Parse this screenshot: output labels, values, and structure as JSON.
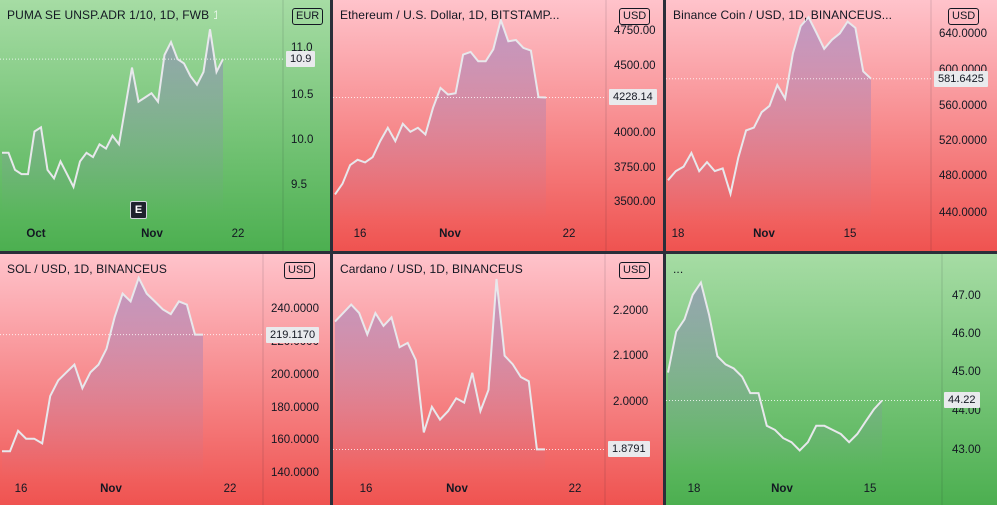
{
  "colors": {
    "green_top": "#a6dca4",
    "green_bottom": "#4caf50",
    "red_top": "#ffc3cb",
    "red_bottom": "#ef5350",
    "line": "#e8e8ec",
    "fill": "#8e7bbf",
    "frame": "#131722",
    "divider": "#2a2e39"
  },
  "chart_data": [
    {
      "type": "line",
      "title": "PUMA SE UNSP.ADR 1/10, 1D, FWB",
      "title_value": "10.9",
      "currency": "EUR",
      "theme": "green",
      "last_price": "10.9",
      "price_ticks": [
        "11.0",
        "10.5",
        "10.0",
        "9.5"
      ],
      "ylim": [
        9.0,
        11.5
      ],
      "x_ticks": [
        "Oct",
        "Nov",
        "22"
      ],
      "event_marker": "E",
      "values": [
        9.8,
        9.8,
        9.6,
        9.55,
        9.55,
        10.05,
        10.1,
        9.6,
        9.5,
        9.7,
        9.55,
        9.4,
        9.7,
        9.8,
        9.75,
        9.9,
        9.85,
        10.0,
        9.9,
        10.35,
        10.8,
        10.4,
        10.45,
        10.5,
        10.4,
        10.95,
        11.1,
        10.9,
        10.85,
        10.7,
        10.6,
        10.75,
        11.25,
        10.75,
        10.9
      ]
    },
    {
      "type": "line",
      "title": "Ethereum / U.S. Dollar, 1D, BITSTAMP...",
      "currency": "USD",
      "theme": "red",
      "last_price": "4228.14",
      "price_ticks": [
        "4750.00",
        "4500.00",
        "4250.00",
        "4000.00",
        "3750.00",
        "3500.00"
      ],
      "ylim": [
        3300,
        4900
      ],
      "x_ticks": [
        "16",
        "Nov",
        "22"
      ],
      "values": [
        3500,
        3580,
        3720,
        3760,
        3740,
        3780,
        3900,
        4000,
        3900,
        4030,
        3970,
        4000,
        3950,
        4150,
        4300,
        4250,
        4260,
        4550,
        4570,
        4500,
        4500,
        4590,
        4810,
        4650,
        4660,
        4600,
        4580,
        4230,
        4228
      ]
    },
    {
      "type": "line",
      "title": "Binance Coin / USD, 1D, BINANCEUS...",
      "currency": "USD",
      "theme": "red",
      "last_price": "581.6425",
      "price_ticks": [
        "640.0000",
        "600.0000",
        "560.0000",
        "520.0000",
        "480.0000",
        "440.0000"
      ],
      "ylim": [
        425,
        660
      ],
      "x_ticks": [
        "18",
        "Nov",
        "15"
      ],
      "values": [
        470,
        480,
        485,
        500,
        480,
        490,
        480,
        483,
        455,
        495,
        525,
        528,
        545,
        552,
        575,
        560,
        610,
        640,
        650,
        633,
        615,
        625,
        632,
        645,
        638,
        590,
        582
      ]
    },
    {
      "type": "line",
      "title": "SOL / USD, 1D, BINANCEUS",
      "currency": "USD",
      "theme": "red",
      "last_price": "219.1170",
      "price_ticks": [
        "240.0000",
        "220.0000",
        "200.0000",
        "180.0000",
        "160.0000",
        "140.0000"
      ],
      "ylim": [
        130,
        265
      ],
      "x_ticks": [
        "16",
        "Nov",
        "22"
      ],
      "values": [
        145,
        145,
        158,
        153,
        153,
        150,
        180,
        190,
        195,
        200,
        185,
        195,
        200,
        210,
        230,
        245,
        240,
        255,
        245,
        240,
        235,
        232,
        240,
        238,
        219,
        219
      ]
    },
    {
      "type": "line",
      "title": "Cardano / USD, 1D, BINANCEUS",
      "currency": "USD",
      "theme": "red",
      "last_price": "1.8791",
      "price_ticks": [
        "2.2000",
        "2.1000",
        "2.0000",
        "1.9000"
      ],
      "ylim": [
        1.82,
        2.32
      ],
      "x_ticks": [
        "16",
        "Nov",
        "22"
      ],
      "values": [
        2.18,
        2.2,
        2.22,
        2.2,
        2.15,
        2.2,
        2.17,
        2.19,
        2.12,
        2.13,
        2.09,
        1.92,
        1.98,
        1.95,
        1.97,
        2.0,
        1.99,
        2.06,
        1.97,
        2.02,
        2.28,
        2.1,
        2.08,
        2.05,
        2.04,
        1.88,
        1.88
      ]
    },
    {
      "type": "line",
      "title": "...",
      "currency": "",
      "theme": "green",
      "last_price": "44.22",
      "price_ticks": [
        "47.00",
        "46.00",
        "45.00",
        "44.00",
        "43.00"
      ],
      "ylim": [
        42.4,
        47.6
      ],
      "x_ticks": [
        "18",
        "Nov",
        "15"
      ],
      "values": [
        44.9,
        45.9,
        46.2,
        46.8,
        47.1,
        46.3,
        45.3,
        45.1,
        45.0,
        44.8,
        44.4,
        44.4,
        43.6,
        43.5,
        43.3,
        43.2,
        43.0,
        43.2,
        43.6,
        43.6,
        43.5,
        43.4,
        43.2,
        43.4,
        43.7,
        44.0,
        44.22
      ]
    }
  ]
}
